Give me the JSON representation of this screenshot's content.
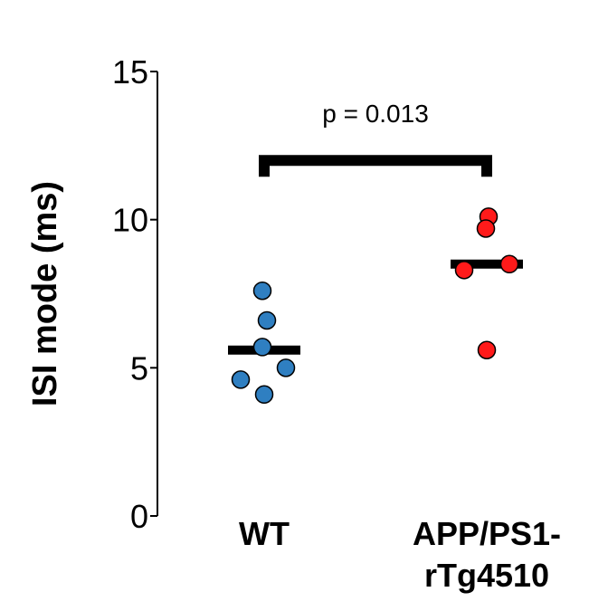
{
  "chart_data": {
    "type": "scatter",
    "ylabel": "ISI mode (ms)",
    "ylim": [
      0,
      15
    ],
    "yticks": [
      0,
      5,
      10,
      15
    ],
    "grid": false,
    "categories": [
      {
        "name": "WT",
        "label_lines": [
          "WT"
        ],
        "color": "#2f7fc1",
        "points": [
          7.6,
          6.6,
          5.7,
          5.0,
          4.6,
          4.1
        ],
        "mean": 5.6
      },
      {
        "name": "APP/PS1-rTg4510",
        "label_lines": [
          "APP/PS1-",
          "rTg4510"
        ],
        "color": "#ff1a1a",
        "points": [
          10.1,
          9.7,
          8.5,
          8.3,
          5.6
        ],
        "mean": 8.5
      }
    ],
    "significance": {
      "text": "p = 0.013",
      "between": [
        "WT",
        "APP/PS1-rTg4510"
      ],
      "y": 12
    }
  }
}
